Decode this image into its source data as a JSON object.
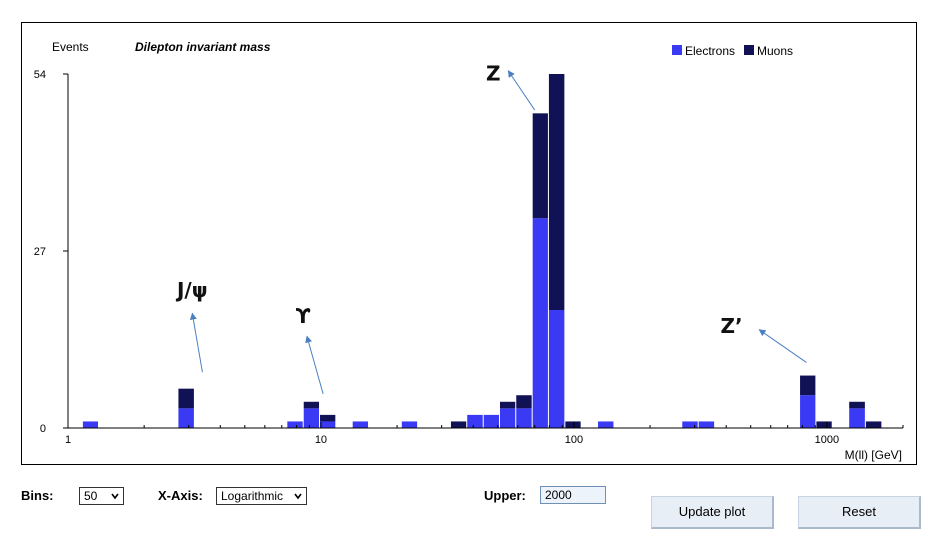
{
  "chart_data": {
    "type": "bar",
    "stacked": true,
    "title": "Dilepton invariant mass",
    "ylabel": "Events",
    "xlabel": "M(ll) [GeV]",
    "x_scale": "log",
    "xlim": [
      1,
      2000
    ],
    "ylim": [
      0,
      54
    ],
    "y_ticks": [
      0,
      27,
      54
    ],
    "x_ticks": [
      1,
      10,
      100,
      1000
    ],
    "legend_position": "top-right",
    "series": [
      {
        "name": "Electrons",
        "color": "#3a3af5"
      },
      {
        "name": "Muons",
        "color": "#111155"
      }
    ],
    "bins": [
      {
        "x": [
          1.14,
          1.32
        ],
        "electrons": 1,
        "muons": 0
      },
      {
        "x": [
          2.72,
          3.16
        ],
        "electrons": 3,
        "muons": 3
      },
      {
        "x": [
          7.33,
          8.51
        ],
        "electrons": 1,
        "muons": 0
      },
      {
        "x": [
          8.51,
          9.87
        ],
        "electrons": 3,
        "muons": 1
      },
      {
        "x": [
          9.87,
          11.45
        ],
        "electrons": 1,
        "muons": 1
      },
      {
        "x": [
          13.29,
          15.42
        ],
        "electrons": 1,
        "muons": 0
      },
      {
        "x": [
          20.78,
          24.11
        ],
        "electrons": 1,
        "muons": 0
      },
      {
        "x": [
          32.5,
          37.7
        ],
        "electrons": 0,
        "muons": 1
      },
      {
        "x": [
          37.7,
          43.8
        ],
        "electrons": 2,
        "muons": 0
      },
      {
        "x": [
          43.8,
          50.8
        ],
        "electrons": 2,
        "muons": 0
      },
      {
        "x": [
          50.8,
          58.9
        ],
        "electrons": 3,
        "muons": 1
      },
      {
        "x": [
          58.9,
          68.4
        ],
        "electrons": 3,
        "muons": 2
      },
      {
        "x": [
          68.4,
          79.3
        ],
        "electrons": 32,
        "muons": 16
      },
      {
        "x": [
          79.3,
          92.1
        ],
        "electrons": 18,
        "muons": 36
      },
      {
        "x": [
          92.1,
          106.8
        ],
        "electrons": 0,
        "muons": 1
      },
      {
        "x": [
          124,
          144
        ],
        "electrons": 1,
        "muons": 0
      },
      {
        "x": [
          267,
          310
        ],
        "electrons": 1,
        "muons": 0
      },
      {
        "x": [
          310,
          360
        ],
        "electrons": 1,
        "muons": 0
      },
      {
        "x": [
          780,
          905
        ],
        "electrons": 5,
        "muons": 3
      },
      {
        "x": [
          905,
          1050
        ],
        "electrons": 0,
        "muons": 1
      },
      {
        "x": [
          1220,
          1420
        ],
        "electrons": 3,
        "muons": 1
      },
      {
        "x": [
          1420,
          1650
        ],
        "electrons": 0,
        "muons": 1
      }
    ],
    "annotations": [
      {
        "text": "J/ψ",
        "label_at": [
          3.1,
          20
        ],
        "arrow_from": [
          3.4,
          8.5
        ],
        "arrow_to": [
          3.1,
          17.5
        ]
      },
      {
        "text": "ϒ",
        "label_at": [
          8.5,
          16
        ],
        "arrow_from": [
          10.2,
          5.2
        ],
        "arrow_to": [
          8.8,
          14
        ]
      },
      {
        "text": "Z",
        "label_at": [
          48,
          53
        ],
        "arrow_from": [
          70,
          48.5
        ],
        "arrow_to": [
          55,
          54.5
        ]
      },
      {
        "text": "Z’",
        "label_at": [
          420,
          14.5
        ],
        "arrow_from": [
          830,
          10
        ],
        "arrow_to": [
          540,
          15
        ]
      }
    ]
  },
  "controls": {
    "bins_label": "Bins:",
    "bins_value": "50",
    "xaxis_label": "X-Axis:",
    "xaxis_value": "Logarithmic",
    "upper_label": "Upper:",
    "upper_value": "2000",
    "update_button": "Update plot",
    "reset_button": "Reset"
  }
}
